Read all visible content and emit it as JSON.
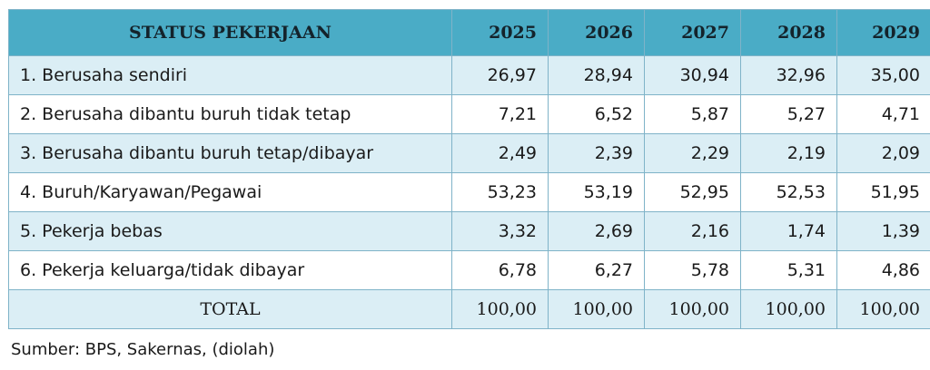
{
  "table": {
    "header": {
      "status": "STATUS PEKERJAAN",
      "years": [
        "2025",
        "2026",
        "2027",
        "2028",
        "2029"
      ]
    },
    "rows": [
      {
        "label": "1. Berusaha sendiri",
        "values": [
          "26,97",
          "28,94",
          "30,94",
          "32,96",
          "35,00"
        ]
      },
      {
        "label": "2. Berusaha dibantu buruh tidak tetap",
        "values": [
          "7,21",
          "6,52",
          "5,87",
          "5,27",
          "4,71"
        ]
      },
      {
        "label": "3. Berusaha dibantu buruh tetap/dibayar",
        "values": [
          "2,49",
          "2,39",
          "2,29",
          "2,19",
          "2,09"
        ]
      },
      {
        "label": "4. Buruh/Karyawan/Pegawai",
        "values": [
          "53,23",
          "53,19",
          "52,95",
          "52,53",
          "51,95"
        ]
      },
      {
        "label": "5. Pekerja bebas",
        "values": [
          "3,32",
          "2,69",
          "2,16",
          "1,74",
          "1,39"
        ]
      },
      {
        "label": "6. Pekerja keluarga/tidak dibayar",
        "values": [
          "6,78",
          "6,27",
          "5,78",
          "5,31",
          "4,86"
        ]
      }
    ],
    "total": {
      "label": "TOTAL",
      "values": [
        "100,00",
        "100,00",
        "100,00",
        "100,00",
        "100,00"
      ]
    }
  },
  "source": "Sumber: BPS, Sakernas, (diolah)",
  "colors": {
    "header_bg": "#4aacc6",
    "shade_bg": "#dbeef5",
    "border": "#7fb3c8"
  }
}
